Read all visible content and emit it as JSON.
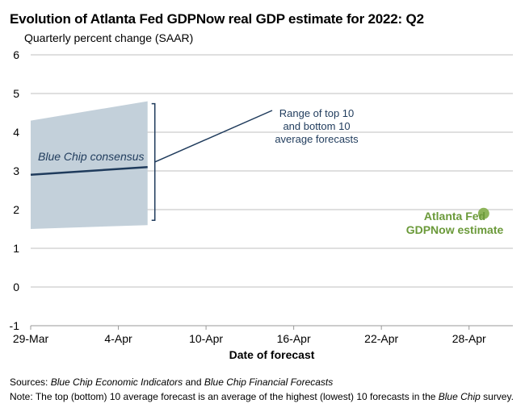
{
  "chart_data": {
    "type": "line",
    "title": "Evolution of Atlanta Fed GDPNow real GDP estimate for 2022: Q2",
    "subtitle": "Quarterly percent change (SAAR)",
    "xlabel": "Date of forecast",
    "ylabel": "",
    "ylim": [
      -1,
      6
    ],
    "yticks": [
      "6",
      "5",
      "4",
      "3",
      "2",
      "1",
      "0",
      "-1"
    ],
    "yticks_values": [
      6,
      5,
      4,
      3,
      2,
      1,
      0,
      -1
    ],
    "xlim": [
      "2022-03-29",
      "2022-05-01"
    ],
    "xticks": [
      "29-Mar",
      "4-Apr",
      "10-Apr",
      "16-Apr",
      "22-Apr",
      "28-Apr"
    ],
    "xticks_values": [
      "2022-03-29",
      "2022-04-04",
      "2022-04-10",
      "2022-04-16",
      "2022-04-22",
      "2022-04-28"
    ],
    "grid": true,
    "band": {
      "x": [
        "2022-03-29",
        "2022-04-06"
      ],
      "low": [
        1.5,
        1.6
      ],
      "high": [
        4.3,
        4.8
      ]
    },
    "series": [
      {
        "name": "Blue Chip consensus",
        "x": [
          "2022-03-29",
          "2022-04-06"
        ],
        "y": [
          2.9,
          3.1
        ],
        "color": "#1f3b5c"
      },
      {
        "name": "Atlanta Fed GDPNow estimate",
        "x": [
          "2022-04-29"
        ],
        "y": [
          1.9
        ],
        "color": "#8db45a"
      }
    ],
    "annotations": {
      "range_lines": [
        "Range of top 10",
        "and bottom 10",
        "average forecasts"
      ],
      "consensus_label": "Blue Chip consensus",
      "gdpnow_lines": [
        "Atlanta Fed",
        "GDPNow estimate"
      ]
    }
  },
  "footer": {
    "sources_label": "Sources:",
    "sources_src1": "Blue Chip Economic Indicators",
    "sources_and": "and",
    "sources_src2": "Blue Chip Financial Forecasts",
    "note_label": "Note:",
    "note_text1": "The top (bottom) 10 average forecast is an average of the highest (lowest) 10 forecasts in the",
    "note_italic": "Blue Chip",
    "note_text2": "survey."
  },
  "colors": {
    "band": "#c3d0da",
    "consensus_line": "#1f3b5c",
    "gdpnow_dot": "#8db45a",
    "gdpnow_text": "#6b9a3a",
    "grid": "#bfbfbf"
  }
}
